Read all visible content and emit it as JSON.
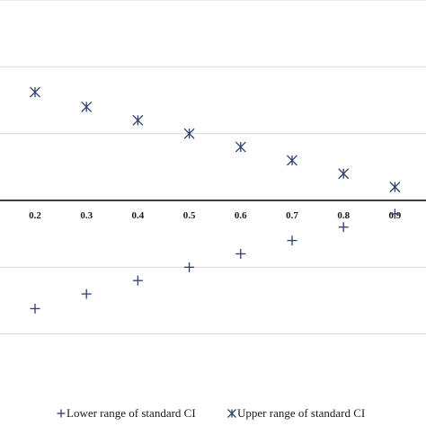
{
  "chart_data": {
    "type": "scatter",
    "x": [
      0.2,
      0.3,
      0.4,
      0.5,
      0.6,
      0.7,
      0.8,
      0.9
    ],
    "x_tick_labels": [
      "0.2",
      "0.3",
      "0.4",
      "0.5",
      "0.6",
      "0.7",
      "0.8",
      "0.9"
    ],
    "series": [
      {
        "name": "Lower range of standard CI",
        "marker": "plus",
        "color": "#2e3e6e",
        "values": [
          -0.81,
          -0.7,
          -0.6,
          -0.5,
          -0.4,
          -0.3,
          -0.2,
          -0.1
        ]
      },
      {
        "name": "Upper range of standard CI",
        "marker": "asterisk",
        "color": "#2e3e6e",
        "values": [
          0.81,
          0.7,
          0.6,
          0.5,
          0.4,
          0.3,
          0.2,
          0.1
        ]
      }
    ],
    "ylim": [
      -1.5,
      1.5
    ],
    "y_gridlines": [
      -1.0,
      -0.5,
      0.5,
      1.0,
      1.5
    ],
    "grid": true,
    "legend_position": "bottom",
    "title": "",
    "xlabel": "",
    "ylabel": ""
  }
}
